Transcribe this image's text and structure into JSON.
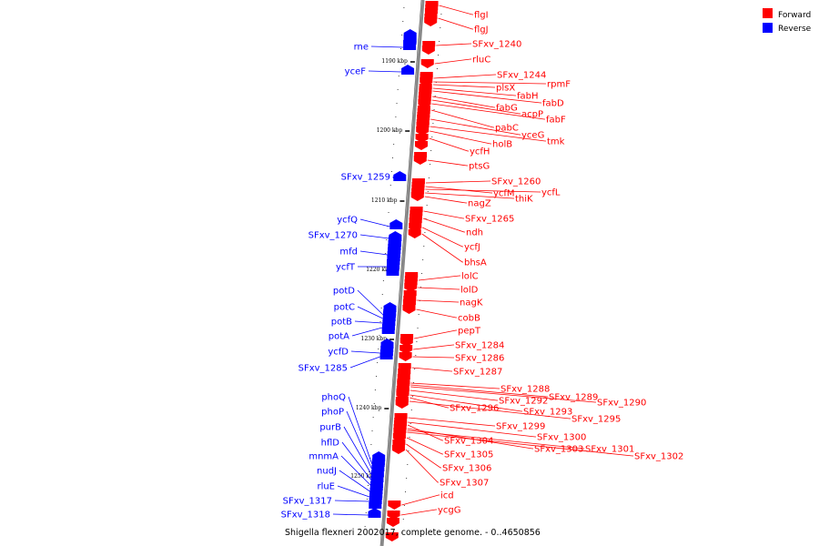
{
  "caption": "Shigella flexneri 2002017, complete genome. - 0..4650856",
  "legend": [
    {
      "label": "Forward",
      "color": "#ff0000"
    },
    {
      "label": "Reverse",
      "color": "#0000ff"
    }
  ],
  "colors": {
    "forward": "#ff0000",
    "reverse": "#0000ff",
    "backbone": "#888888"
  },
  "ticks": [
    "1190 kbp",
    "1200 kbp",
    "1210 kbp",
    "1220 kbp",
    "1230 kbp",
    "1240 kbp",
    "1250 kbp"
  ],
  "forward_genes": [
    "flgI",
    "flgJ",
    "SFxv_1240",
    "rluC",
    "SFxv_1244",
    "rpmF",
    "plsX",
    "fabH",
    "fabD",
    "fabG",
    "acpP",
    "fabF",
    "pabC",
    "yceG",
    "tmk",
    "holB",
    "ycfH",
    "ptsG",
    "SFxv_1260",
    "ycfM",
    "ycfL",
    "thiK",
    "nagZ",
    "SFxv_1265",
    "ndh",
    "ycfJ",
    "bhsA",
    "lolC",
    "lolD",
    "nagK",
    "cobB",
    "pepT",
    "SFxv_1284",
    "SFxv_1286",
    "SFxv_1287",
    "SFxv_1288",
    "SFxv_1289",
    "SFxv_1290",
    "SFxv_1292",
    "SFxv_1293",
    "SFxv_1296",
    "SFxv_1295",
    "SFxv_1299",
    "SFxv_1300",
    "SFxv_1304",
    "SFxv_1303",
    "SFxv_1301",
    "SFxv_1302",
    "SFxv_1305",
    "SFxv_1306",
    "SFxv_1307",
    "icd",
    "ycgG"
  ],
  "reverse_genes": [
    "rne",
    "yceF",
    "SFxv_1259",
    "ycfQ",
    "SFxv_1270",
    "mfd",
    "ycfT",
    "potD",
    "potC",
    "potB",
    "potA",
    "ycfD",
    "SFxv_1285",
    "phoQ",
    "phoP",
    "purB",
    "hflD",
    "mnmA",
    "nudJ",
    "rluE",
    "SFxv_1317",
    "SFxv_1318"
  ]
}
